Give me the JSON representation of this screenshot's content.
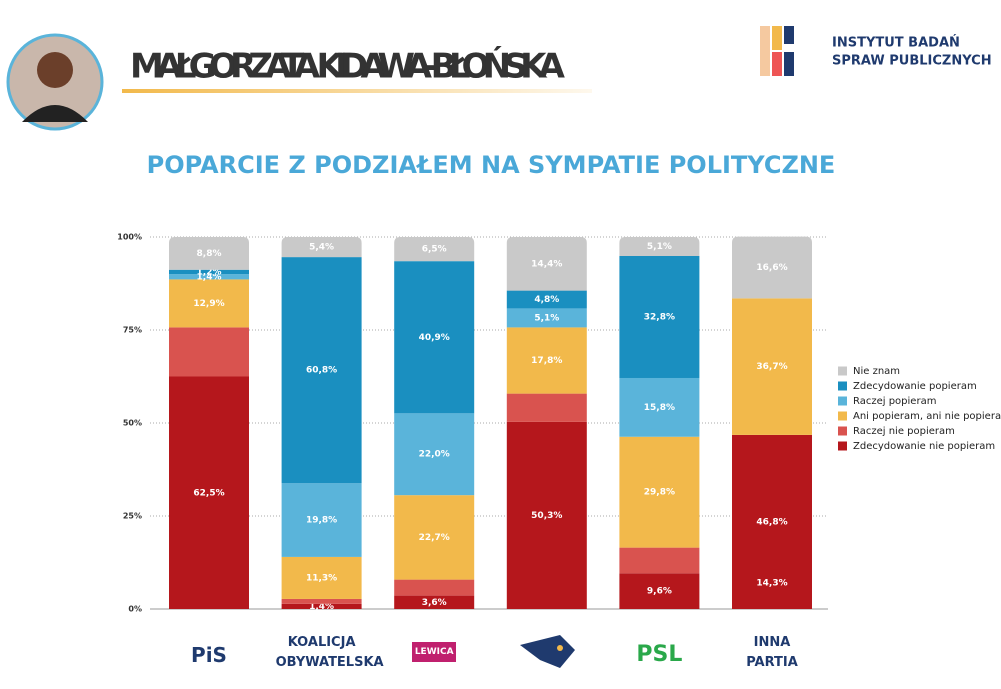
{
  "header": {
    "title": "MAŁGORZATA KIDAWA-BŁOŃSKA",
    "logo_line1": "INSTYTUT BADAŃ",
    "logo_line2": "SPRAW PUBLICZNYCH"
  },
  "chart_data": {
    "type": "stacked_bar",
    "title": "POPARCIE Z PODZIAŁEM NA SYMPATIE POLITYCZNE",
    "categories": [
      "PiS",
      "KOALICJA OBYWATELSKA",
      "LEWICA",
      null,
      "PSL",
      "INNA PARTIA"
    ],
    "ylim": [
      0,
      100
    ],
    "yticks": [
      {
        "value": 0,
        "label": "0%"
      },
      {
        "value": 25,
        "label": "25%"
      },
      {
        "value": 50,
        "label": "50%"
      },
      {
        "value": 75,
        "label": "75%"
      },
      {
        "value": 100,
        "label": "100%"
      }
    ],
    "grid": true,
    "legend": "right",
    "series": [
      {
        "name": "Zdecydowanie nie popieram",
        "color": "#b5171c",
        "values": [
          62.5,
          1.4,
          3.6,
          50.3,
          9.6,
          46.8
        ],
        "value_labels": [
          "62,5%",
          "1,4%",
          "3,6%",
          "50,3%",
          "9,6%",
          "46,8%"
        ]
      },
      {
        "name": "Raczej nie popieram",
        "color": "#d9534f",
        "values": [
          13.2,
          1.3,
          4.3,
          7.6,
          6.9,
          0
        ],
        "value_labels": [
          null,
          null,
          null,
          null,
          null,
          null
        ]
      },
      {
        "name": "Ani popieram, ani nie popieram",
        "color": "#f2b94b",
        "values": [
          12.9,
          11.3,
          22.7,
          17.8,
          29.8,
          36.7
        ],
        "value_labels": [
          "12,9%",
          "11,3%",
          "22,7%",
          "17,8%",
          "29,8%",
          "36,7%"
        ]
      },
      {
        "name": "Raczej popieram",
        "color": "#5ab4da",
        "values": [
          1.4,
          19.8,
          22.0,
          5.1,
          15.8,
          0
        ],
        "value_labels": [
          "1,4%",
          "19,8%",
          "22,0%",
          "5,1%",
          "15,8%",
          null
        ]
      },
      {
        "name": "Zdecydowanie popieram",
        "color": "#1a8fc0",
        "values": [
          1.2,
          60.8,
          40.9,
          4.8,
          32.8,
          0
        ],
        "value_labels": [
          "1,2%",
          "60,8%",
          "40,9%",
          "4,8%",
          "32,8%",
          null
        ]
      },
      {
        "name": "Nie znam",
        "color": "#c9c9c9",
        "values": [
          8.8,
          5.4,
          6.5,
          14.4,
          5.1,
          16.6
        ],
        "value_labels": [
          "8,8%",
          "5,4%",
          "6,5%",
          "14,4%",
          "5,1%",
          "16,6%"
        ]
      }
    ],
    "annotations": [
      "14,3%"
    ]
  }
}
